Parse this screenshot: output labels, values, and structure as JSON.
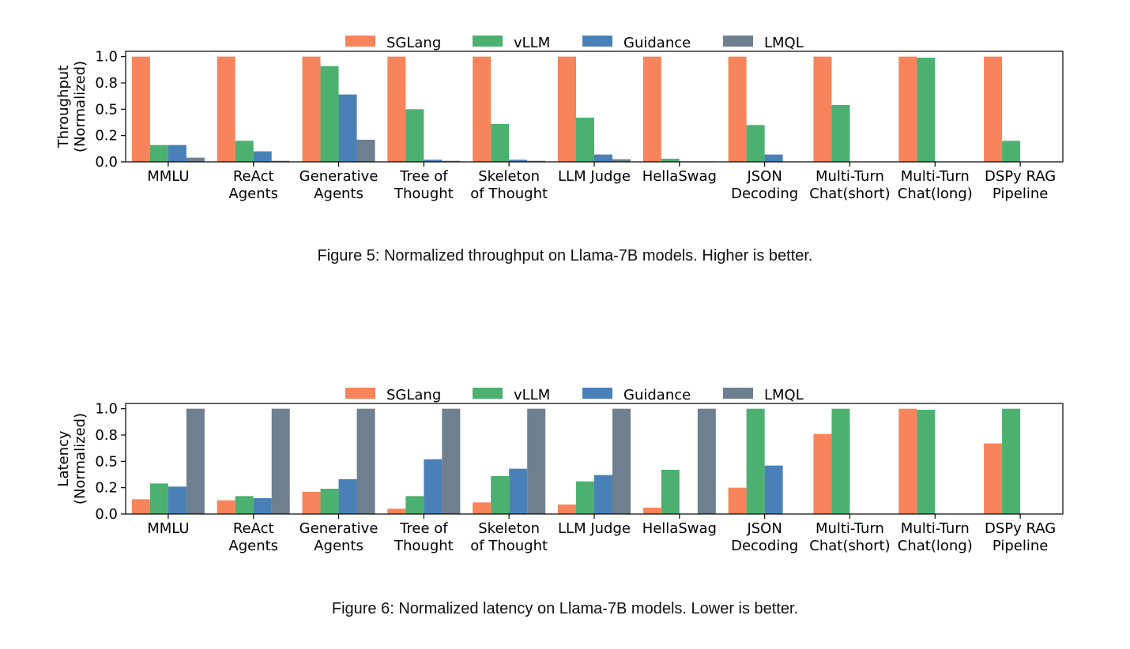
{
  "chart_data": [
    {
      "type": "bar",
      "ylabel": [
        "Throughput",
        "(Normalized)"
      ],
      "ylim": [
        0,
        1.05
      ],
      "yticks": [
        {
          "value": 0.0,
          "label": "0.0"
        },
        {
          "value": 0.25,
          "label": "0.2"
        },
        {
          "value": 0.5,
          "label": "0.5"
        },
        {
          "value": 0.75,
          "label": "0.8"
        },
        {
          "value": 1.0,
          "label": "1.0"
        }
      ],
      "legend_position": "top-center",
      "categories": [
        [
          "MMLU"
        ],
        [
          "ReAct",
          "Agents"
        ],
        [
          "Generative",
          "Agents"
        ],
        [
          "Tree of",
          "Thought"
        ],
        [
          "Skeleton",
          "of Thought"
        ],
        [
          "LLM Judge"
        ],
        [
          "HellaSwag"
        ],
        [
          "JSON",
          "Decoding"
        ],
        [
          "Multi-Turn",
          "Chat(short)"
        ],
        [
          "Multi-Turn",
          "Chat(long)"
        ],
        [
          "DSPy RAG",
          "Pipeline"
        ]
      ],
      "series": [
        {
          "name": "SGLang",
          "color": "#f7845a",
          "values": [
            1.0,
            1.0,
            1.0,
            1.0,
            1.0,
            1.0,
            1.0,
            1.0,
            1.0,
            1.0,
            1.0
          ]
        },
        {
          "name": "vLLM",
          "color": "#4cb070",
          "values": [
            0.16,
            0.2,
            0.91,
            0.5,
            0.36,
            0.42,
            0.03,
            0.35,
            0.54,
            0.99,
            0.2
          ]
        },
        {
          "name": "Guidance",
          "color": "#4a80b8",
          "values": [
            0.16,
            0.1,
            0.64,
            0.02,
            0.02,
            0.07,
            0.005,
            0.07,
            null,
            null,
            null
          ]
        },
        {
          "name": "LMQL",
          "color": "#6e7f8f",
          "values": [
            0.04,
            0.01,
            0.21,
            0.01,
            0.01,
            0.025,
            0.005,
            null,
            null,
            null,
            null
          ]
        }
      ]
    },
    {
      "type": "bar",
      "ylabel": [
        "Latency",
        "(Normalized)"
      ],
      "ylim": [
        0,
        1.05
      ],
      "yticks": [
        {
          "value": 0.0,
          "label": "0.0"
        },
        {
          "value": 0.25,
          "label": "0.2"
        },
        {
          "value": 0.5,
          "label": "0.5"
        },
        {
          "value": 0.75,
          "label": "0.8"
        },
        {
          "value": 1.0,
          "label": "1.0"
        }
      ],
      "legend_position": "top-center",
      "categories": [
        [
          "MMLU"
        ],
        [
          "ReAct",
          "Agents"
        ],
        [
          "Generative",
          "Agents"
        ],
        [
          "Tree of",
          "Thought"
        ],
        [
          "Skeleton",
          "of Thought"
        ],
        [
          "LLM Judge"
        ],
        [
          "HellaSwag"
        ],
        [
          "JSON",
          "Decoding"
        ],
        [
          "Multi-Turn",
          "Chat(short)"
        ],
        [
          "Multi-Turn",
          "Chat(long)"
        ],
        [
          "DSPy RAG",
          "Pipeline"
        ]
      ],
      "series": [
        {
          "name": "SGLang",
          "color": "#f7845a",
          "values": [
            0.14,
            0.13,
            0.21,
            0.05,
            0.11,
            0.09,
            0.06,
            0.25,
            0.76,
            1.0,
            0.67
          ]
        },
        {
          "name": "vLLM",
          "color": "#4cb070",
          "values": [
            0.29,
            0.17,
            0.24,
            0.17,
            0.36,
            0.31,
            0.42,
            1.0,
            1.0,
            0.99,
            1.0
          ]
        },
        {
          "name": "Guidance",
          "color": "#4a80b8",
          "values": [
            0.26,
            0.15,
            0.33,
            0.52,
            0.43,
            0.37,
            null,
            0.46,
            null,
            null,
            null
          ]
        },
        {
          "name": "LMQL",
          "color": "#6e7f8f",
          "values": [
            1.0,
            1.0,
            1.0,
            1.0,
            1.0,
            1.0,
            1.0,
            null,
            null,
            null,
            null
          ]
        }
      ]
    }
  ],
  "captions": {
    "figure5": "Figure 5: Normalized throughput on Llama-7B models. Higher is better.",
    "figure6": "Figure 6: Normalized latency on Llama-7B models. Lower is better."
  }
}
